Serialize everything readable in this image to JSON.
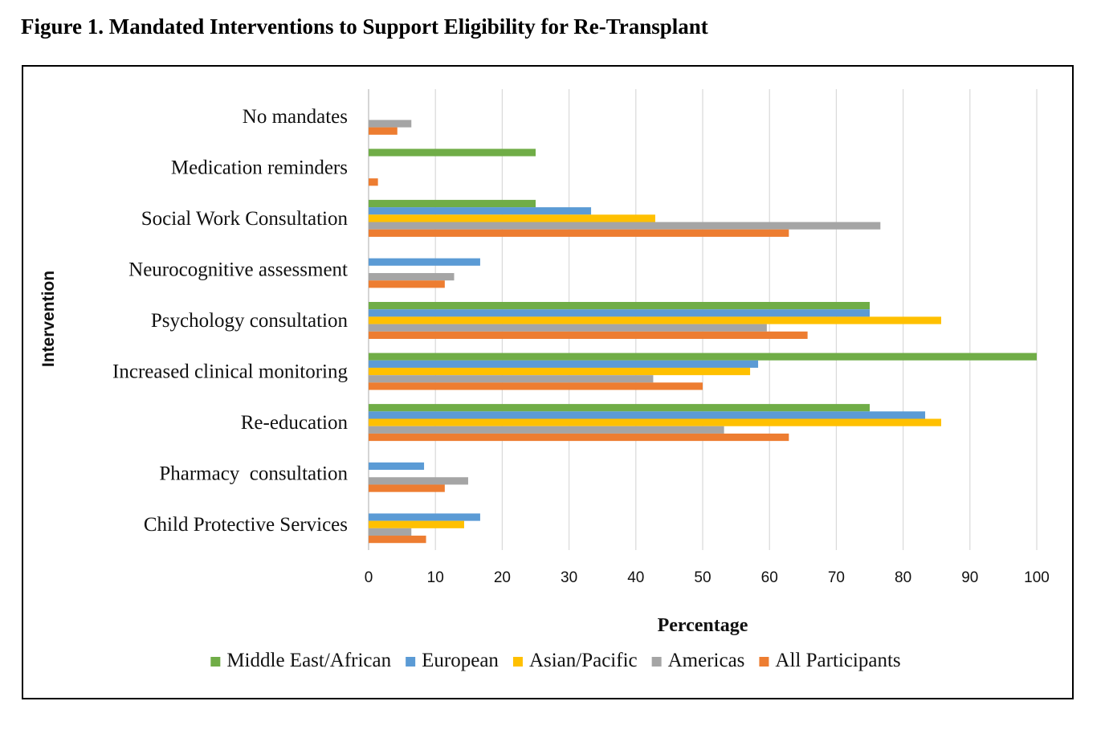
{
  "figure_title": "Figure 1. Mandated Interventions to Support Eligibility for Re-Transplant",
  "chart_data": {
    "type": "bar",
    "orientation": "horizontal",
    "categories": [
      "No mandates",
      "Medication reminders",
      "Social Work Consultation",
      "Neurocognitive assessment",
      "Psychology consultation",
      "Increased clinical monitoring",
      "Re-education",
      "Pharmacy  consultation",
      "Child Protective Services"
    ],
    "series": [
      {
        "name": "Middle East/African",
        "color": "#70ad47",
        "values": [
          0,
          25,
          25,
          0,
          75,
          100,
          75,
          0,
          0
        ]
      },
      {
        "name": "European",
        "color": "#5b9bd5",
        "values": [
          0,
          0,
          33.3,
          16.7,
          75,
          58.3,
          83.3,
          8.3,
          16.7
        ]
      },
      {
        "name": "Asian/Pacific",
        "color": "#ffc000",
        "values": [
          0,
          0,
          42.9,
          0,
          85.7,
          57.1,
          85.7,
          0,
          14.3
        ]
      },
      {
        "name": "Americas",
        "color": "#a5a5a5",
        "values": [
          6.4,
          0,
          76.6,
          12.8,
          59.6,
          42.6,
          53.2,
          14.9,
          6.4
        ]
      },
      {
        "name": "All Participants",
        "color": "#ed7d31",
        "values": [
          4.3,
          1.4,
          62.9,
          11.4,
          65.7,
          50,
          62.9,
          11.4,
          8.6
        ]
      }
    ],
    "xlabel": "Percentage",
    "ylabel": "Intervention",
    "xlim": [
      0,
      100
    ],
    "xticks": [
      0,
      10,
      20,
      30,
      40,
      50,
      60,
      70,
      80,
      90,
      100
    ],
    "grid": "vertical",
    "legend_position": "bottom"
  }
}
